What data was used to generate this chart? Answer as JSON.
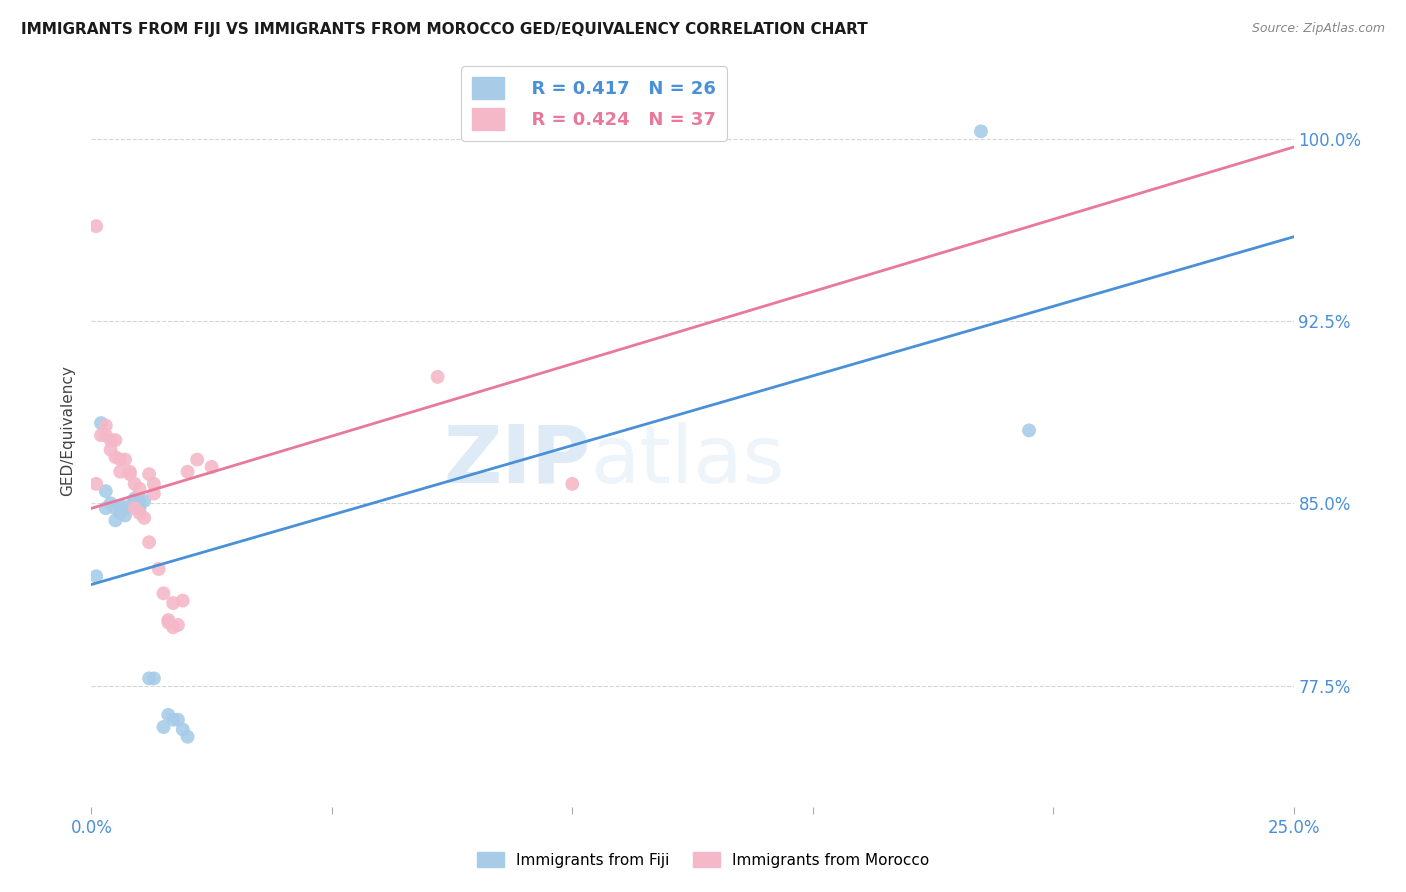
{
  "title": "IMMIGRANTS FROM FIJI VS IMMIGRANTS FROM MOROCCO GED/EQUIVALENCY CORRELATION CHART",
  "source": "Source: ZipAtlas.com",
  "ylabel": "GED/Equivalency",
  "yticks": [
    "100.0%",
    "92.5%",
    "85.0%",
    "77.5%"
  ],
  "ytick_values": [
    1.0,
    0.925,
    0.85,
    0.775
  ],
  "xlim": [
    0.0,
    0.25
  ],
  "ylim": [
    0.725,
    1.035
  ],
  "fiji_color": "#a8cce8",
  "morocco_color": "#f4b8c8",
  "fiji_line_color": "#4a90d9",
  "morocco_line_color": "#e8799a",
  "fiji_R": 0.417,
  "fiji_N": 26,
  "morocco_R": 0.424,
  "morocco_N": 37,
  "fiji_x": [
    0.001,
    0.002,
    0.003,
    0.003,
    0.004,
    0.005,
    0.005,
    0.006,
    0.006,
    0.007,
    0.007,
    0.008,
    0.009,
    0.01,
    0.01,
    0.011,
    0.012,
    0.013,
    0.015,
    0.016,
    0.017,
    0.018,
    0.019,
    0.02,
    0.185,
    0.195
  ],
  "fiji_y": [
    0.82,
    0.883,
    0.848,
    0.855,
    0.85,
    0.848,
    0.843,
    0.849,
    0.846,
    0.848,
    0.845,
    0.849,
    0.852,
    0.851,
    0.848,
    0.851,
    0.778,
    0.778,
    0.758,
    0.763,
    0.761,
    0.761,
    0.757,
    0.754,
    1.003,
    0.88
  ],
  "morocco_x": [
    0.001,
    0.001,
    0.002,
    0.003,
    0.003,
    0.004,
    0.004,
    0.005,
    0.005,
    0.006,
    0.006,
    0.007,
    0.008,
    0.008,
    0.009,
    0.009,
    0.01,
    0.01,
    0.011,
    0.012,
    0.012,
    0.013,
    0.013,
    0.014,
    0.015,
    0.016,
    0.016,
    0.017,
    0.017,
    0.018,
    0.019,
    0.02,
    0.022,
    0.025,
    0.072,
    0.1,
    0.105
  ],
  "morocco_y": [
    0.858,
    0.964,
    0.878,
    0.882,
    0.878,
    0.876,
    0.872,
    0.869,
    0.876,
    0.868,
    0.863,
    0.868,
    0.863,
    0.862,
    0.858,
    0.848,
    0.856,
    0.846,
    0.844,
    0.834,
    0.862,
    0.858,
    0.854,
    0.823,
    0.813,
    0.802,
    0.801,
    0.799,
    0.809,
    0.8,
    0.81,
    0.863,
    0.868,
    0.865,
    0.902,
    0.858,
    1.003
  ],
  "watermark_zip": "ZIP",
  "watermark_atlas": "atlas",
  "background_color": "#ffffff",
  "grid_color": "#cccccc"
}
